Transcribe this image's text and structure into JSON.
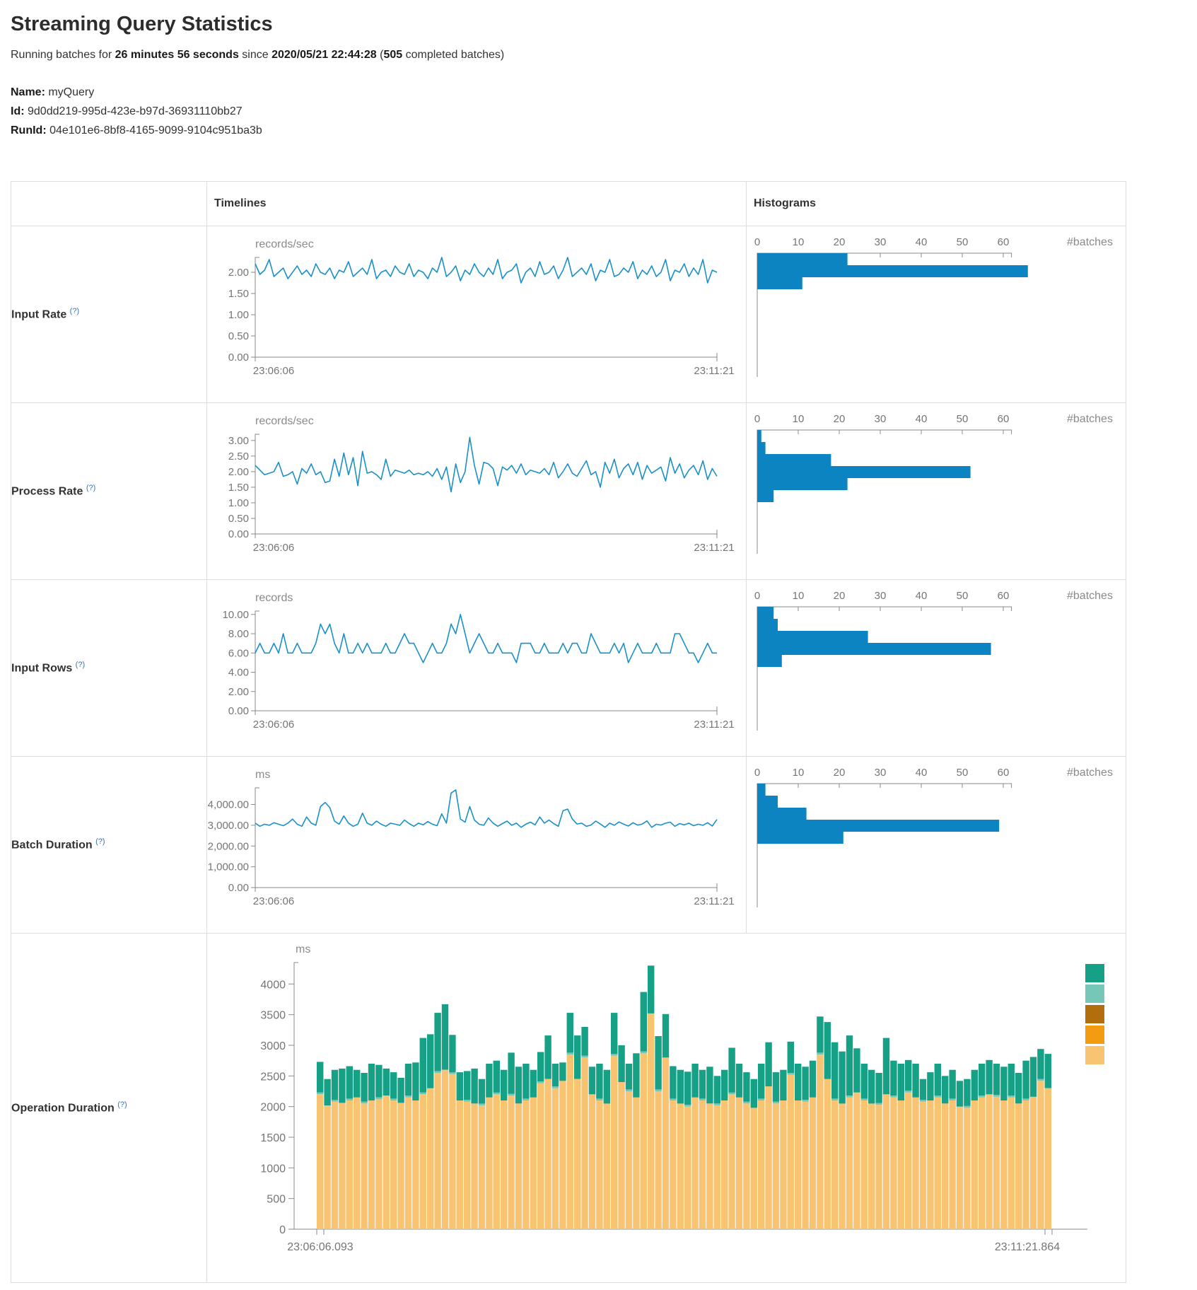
{
  "page": {
    "title": "Streaming Query Statistics",
    "running": {
      "p1": "Running batches for ",
      "p2": "26 minutes 56 seconds",
      "p3": " since ",
      "p4": "2020/05/21 22:44:28",
      "p5": " (",
      "p6": "505",
      "p7": " completed batches)"
    },
    "meta": {
      "name_label": "Name:",
      "name": " myQuery",
      "id_label": "Id:",
      "id": " 9d0dd219-995d-423e-b97d-36931110bb27",
      "runid_label": "RunId:",
      "runid": " 04e101e6-8bf8-4165-9099-9104c951ba3b"
    }
  },
  "table": {
    "timelines": "Timelines",
    "histograms": "Histograms"
  },
  "rows": [
    {
      "label": "Input Rate",
      "help": "(?)"
    },
    {
      "label": "Process Rate",
      "help": "(?)"
    },
    {
      "label": "Input Rows",
      "help": "(?)"
    },
    {
      "label": "Batch Duration",
      "help": "(?)"
    },
    {
      "label": "Operation Duration",
      "help": "(?)"
    }
  ],
  "colors": {
    "timeline_line": "#1a90c8",
    "histogram_bar": "#0d84c2",
    "axis": "#8a8a8a",
    "tick_text": "#757575",
    "table_border": "#dddddd",
    "help_link": "#3b73b9"
  },
  "chart_data": [
    {
      "id": "input-rate-timeline",
      "type": "line",
      "title": "Input Rate",
      "ylabel": "records/sec",
      "ylim": [
        0,
        2.35
      ],
      "yticks": [
        {
          "v": 0,
          "label": "0.00"
        },
        {
          "v": 0.5,
          "label": "0.50"
        },
        {
          "v": 1,
          "label": "1.00"
        },
        {
          "v": 1.5,
          "label": "1.50"
        },
        {
          "v": 2,
          "label": "2.00"
        }
      ],
      "x_start": "23:06:06",
      "x_end": "23:11:21",
      "values": [
        2.2,
        1.95,
        2.05,
        2.3,
        1.9,
        2.0,
        2.1,
        1.85,
        2.0,
        2.15,
        1.95,
        2.05,
        1.9,
        2.2,
        2.0,
        1.95,
        2.1,
        1.85,
        2.05,
        2.0,
        2.25,
        1.9,
        2.0,
        2.1,
        1.95,
        2.3,
        1.85,
        2.0,
        2.05,
        1.9,
        2.15,
        2.0,
        1.95,
        2.2,
        1.9,
        2.05,
        2.0,
        1.85,
        2.1,
        2.0,
        2.35,
        1.9,
        2.0,
        2.15,
        1.8,
        2.05,
        1.95,
        2.2,
        2.0,
        1.9,
        2.1,
        1.95,
        2.3,
        1.85,
        2.0,
        2.05,
        2.2,
        1.75,
        2.0,
        2.1,
        1.9,
        2.25,
        1.95,
        2.0,
        2.15,
        1.85,
        2.05,
        2.35,
        1.9,
        2.0,
        2.1,
        1.95,
        2.2,
        1.8,
        2.05,
        2.0,
        2.3,
        1.9,
        1.95,
        2.1,
        2.0,
        2.25,
        1.85,
        2.05,
        1.95,
        2.15,
        1.9,
        2.0,
        2.3,
        1.8,
        2.05,
        2.0,
        2.2,
        1.9,
        2.1,
        1.95,
        2.3,
        1.75,
        2.05,
        2.0
      ]
    },
    {
      "id": "input-rate-histogram",
      "type": "hbar",
      "title": "Input Rate histogram",
      "xlabel": "#batches",
      "xlim": [
        0,
        62
      ],
      "xticks": [
        0,
        10,
        20,
        30,
        40,
        50,
        60
      ],
      "values": [
        22,
        66,
        11
      ]
    },
    {
      "id": "process-rate-timeline",
      "type": "line",
      "title": "Process Rate",
      "ylabel": "records/sec",
      "ylim": [
        0,
        3.2
      ],
      "yticks": [
        {
          "v": 0,
          "label": "0.00"
        },
        {
          "v": 0.5,
          "label": "0.50"
        },
        {
          "v": 1,
          "label": "1.00"
        },
        {
          "v": 1.5,
          "label": "1.50"
        },
        {
          "v": 2,
          "label": "2.00"
        },
        {
          "v": 2.5,
          "label": "2.50"
        },
        {
          "v": 3,
          "label": "3.00"
        }
      ],
      "x_start": "23:06:06",
      "x_end": "23:11:21",
      "values": [
        2.2,
        2.05,
        1.9,
        1.95,
        2.0,
        2.3,
        1.85,
        1.9,
        2.0,
        1.6,
        2.1,
        1.95,
        2.25,
        1.9,
        2.0,
        1.65,
        1.7,
        2.4,
        1.85,
        2.6,
        1.9,
        2.45,
        1.55,
        2.65,
        1.95,
        2.0,
        1.9,
        1.75,
        2.4,
        1.85,
        2.05,
        2.0,
        1.95,
        2.05,
        1.9,
        1.95,
        1.9,
        2.0,
        1.85,
        2.1,
        1.75,
        2.15,
        1.35,
        2.25,
        1.65,
        2.0,
        3.1,
        2.2,
        1.6,
        2.3,
        2.25,
        2.1,
        1.55,
        2.15,
        2.05,
        2.2,
        1.95,
        2.25,
        1.9,
        2.05,
        2.0,
        1.95,
        2.1,
        1.9,
        2.3,
        1.8,
        2.0,
        2.25,
        1.95,
        1.85,
        2.1,
        2.35,
        1.9,
        2.0,
        1.5,
        2.3,
        1.95,
        2.4,
        1.8,
        2.1,
        2.25,
        1.9,
        2.3,
        1.75,
        2.2,
        1.95,
        2.05,
        2.15,
        1.7,
        2.45,
        1.95,
        2.25,
        1.8,
        2.05,
        2.2,
        1.9,
        2.35,
        1.75,
        2.1,
        1.85
      ]
    },
    {
      "id": "process-rate-histogram",
      "type": "hbar",
      "title": "Process Rate histogram",
      "xlabel": "#batches",
      "xlim": [
        0,
        62
      ],
      "xticks": [
        0,
        10,
        20,
        30,
        40,
        50,
        60
      ],
      "values": [
        1,
        2,
        18,
        52,
        22,
        4
      ]
    },
    {
      "id": "input-rows-timeline",
      "type": "line",
      "title": "Input Rows",
      "ylabel": "records",
      "ylim": [
        0,
        10.35
      ],
      "yticks": [
        {
          "v": 0,
          "label": "0.00"
        },
        {
          "v": 2,
          "label": "2.00"
        },
        {
          "v": 4,
          "label": "4.00"
        },
        {
          "v": 6,
          "label": "6.00"
        },
        {
          "v": 8,
          "label": "8.00"
        },
        {
          "v": 10,
          "label": "10.00"
        }
      ],
      "x_start": "23:06:06",
      "x_end": "23:11:21",
      "values": [
        6,
        7,
        6,
        6,
        7,
        6,
        8,
        6,
        6,
        7,
        6,
        6,
        6,
        7,
        9,
        8,
        9,
        7,
        6,
        8,
        6,
        6,
        7,
        6,
        7,
        6,
        6,
        6,
        7,
        6,
        6,
        7,
        8,
        7,
        7,
        6,
        5,
        6,
        7,
        6,
        6,
        7,
        9,
        8,
        10,
        8,
        6,
        7,
        8,
        7,
        6,
        6,
        7,
        6,
        6,
        6,
        5,
        7,
        7,
        7,
        6,
        6,
        7,
        6,
        6,
        6,
        7,
        6,
        7,
        7,
        6,
        6,
        8,
        7,
        6,
        6,
        6,
        7,
        6,
        7,
        5,
        6,
        7,
        6,
        6,
        6,
        7,
        6,
        6,
        6,
        8,
        8,
        7,
        6,
        6,
        5,
        6,
        7,
        6,
        6
      ]
    },
    {
      "id": "input-rows-histogram",
      "type": "hbar",
      "title": "Input Rows histogram",
      "xlabel": "#batches",
      "xlim": [
        0,
        62
      ],
      "xticks": [
        0,
        10,
        20,
        30,
        40,
        50,
        60
      ],
      "values": [
        4,
        5,
        27,
        57,
        6
      ]
    },
    {
      "id": "batch-duration-timeline",
      "type": "line",
      "title": "Batch Duration",
      "ylabel": "ms",
      "ylim": [
        0,
        4800
      ],
      "yticks": [
        {
          "v": 0,
          "label": "0.00"
        },
        {
          "v": 1000,
          "label": "1,000.00"
        },
        {
          "v": 2000,
          "label": "2,000.00"
        },
        {
          "v": 3000,
          "label": "3,000.00"
        },
        {
          "v": 4000,
          "label": "4,000.00"
        }
      ],
      "x_start": "23:06:06",
      "x_end": "23:11:21",
      "values": [
        3100,
        2950,
        3050,
        3000,
        3120,
        3050,
        2980,
        3100,
        3300,
        3050,
        2950,
        3400,
        3100,
        3000,
        3900,
        4100,
        3850,
        3200,
        3050,
        3450,
        3100,
        2950,
        3050,
        3580,
        3100,
        3000,
        3200,
        3050,
        2950,
        3100,
        3050,
        3000,
        3250,
        3080,
        2950,
        3100,
        3020,
        3180,
        3050,
        2980,
        3550,
        3100,
        4550,
        4700,
        3300,
        3150,
        3900,
        3250,
        3050,
        3000,
        3350,
        3100,
        2950,
        3080,
        3200,
        3000,
        3100,
        2900,
        3050,
        3150,
        3020,
        3400,
        3100,
        3250,
        3080,
        2950,
        3700,
        3780,
        3300,
        3060,
        3100,
        2950,
        3010,
        3200,
        3060,
        2900,
        3100,
        3000,
        3160,
        3050,
        2960,
        3120,
        3010,
        3060,
        3210,
        2900,
        3050,
        3010,
        3100,
        3150,
        2950,
        3080,
        3020,
        3100,
        2980,
        3050,
        3000,
        3120,
        2960,
        3280
      ]
    },
    {
      "id": "batch-duration-histogram",
      "type": "hbar",
      "title": "Batch Duration histogram",
      "xlabel": "#batches",
      "xlim": [
        0,
        62
      ],
      "xticks": [
        0,
        10,
        20,
        30,
        40,
        50,
        60
      ],
      "values": [
        2,
        5,
        12,
        59,
        21
      ]
    },
    {
      "id": "operation-duration",
      "type": "stacked-bar",
      "title": "Operation Duration",
      "ylabel": "ms",
      "ylim": [
        0,
        4350
      ],
      "yticks": [
        {
          "v": 0,
          "label": "0"
        },
        {
          "v": 500,
          "label": "500"
        },
        {
          "v": 1000,
          "label": "1000"
        },
        {
          "v": 1500,
          "label": "1500"
        },
        {
          "v": 2000,
          "label": "2000"
        },
        {
          "v": 2500,
          "label": "2500"
        },
        {
          "v": 3000,
          "label": "3000"
        },
        {
          "v": 3500,
          "label": "3500"
        },
        {
          "v": 4000,
          "label": "4000"
        }
      ],
      "x_start": "23:06:06.093",
      "x_end": "23:11:21.864",
      "legend_position": "right",
      "series": [
        {
          "color": "#16a085",
          "values": [
            500,
            430,
            490,
            560,
            530,
            450,
            470,
            600,
            530,
            440,
            430,
            410,
            520,
            620,
            890,
            880,
            950,
            1070,
            610,
            460,
            470,
            570,
            400,
            550,
            520,
            500,
            670,
            600,
            570,
            450,
            480,
            710,
            370,
            300,
            650,
            710,
            470,
            450,
            570,
            550,
            670,
            600,
            420,
            720,
            970,
            780,
            870,
            710,
            530,
            550,
            540,
            550,
            470,
            600,
            450,
            500,
            730,
            550,
            480,
            470,
            570,
            720,
            480,
            500,
            510,
            600,
            540,
            600,
            590,
            930,
            920,
            850,
            980,
            720,
            570,
            550,
            490,
            920,
            570,
            600,
            500,
            550,
            340,
            460,
            520,
            450,
            470,
            420,
            440,
            500,
            520,
            560,
            510,
            550,
            520,
            500,
            620,
            650,
            490,
            560
          ]
        },
        {
          "color": "#76c7b7",
          "values": [
            30,
            0,
            30,
            0,
            30,
            0,
            30,
            0,
            30,
            0,
            30,
            0,
            30,
            0,
            30,
            0,
            30,
            0,
            30,
            0,
            30,
            0,
            30,
            0,
            30,
            0,
            30,
            0,
            30,
            0,
            30,
            0,
            30,
            0,
            30,
            0,
            30,
            0,
            30,
            0,
            30,
            0,
            30,
            0,
            30,
            0,
            30,
            0,
            30,
            0,
            30,
            0,
            30,
            0,
            30,
            0,
            30,
            0,
            30,
            0,
            30,
            0,
            30,
            0,
            30,
            0,
            30,
            0,
            30,
            0,
            30,
            0,
            30,
            0,
            30,
            0,
            30,
            0,
            30,
            0,
            30,
            0,
            30,
            0,
            30,
            0,
            30,
            0,
            30,
            0,
            30,
            0,
            30,
            0,
            30,
            0,
            30,
            0,
            30,
            0
          ]
        },
        {
          "color": "#b26e0d",
          "values": null
        },
        {
          "color": "#f39c12",
          "values": null
        },
        {
          "color": "#f8c471",
          "values": [
            2200,
            2020,
            2080,
            2060,
            2100,
            2150,
            2050,
            2100,
            2120,
            2180,
            2100,
            2060,
            2150,
            2100,
            2200,
            2300,
            2550,
            2600,
            2530,
            2100,
            2080,
            2050,
            2020,
            2150,
            2200,
            2100,
            2180,
            2050,
            2100,
            2150,
            2380,
            2450,
            2300,
            2420,
            2850,
            2450,
            2800,
            2200,
            2100,
            2050,
            2830,
            2400,
            2250,
            2150,
            2870,
            3520,
            2250,
            2800,
            2100,
            2050,
            2000,
            2150,
            2100,
            2050,
            2020,
            2100,
            2200,
            2150,
            2050,
            1980,
            2100,
            2330,
            2050,
            2100,
            2520,
            2100,
            2080,
            2150,
            2850,
            2450,
            2100,
            2050,
            2150,
            2230,
            2100,
            2050,
            2030,
            2200,
            2150,
            2100,
            2230,
            2150,
            2080,
            2100,
            2150,
            2050,
            2100,
            2000,
            1980,
            2100,
            2150,
            2200,
            2160,
            2100,
            2150,
            2050,
            2100,
            2160,
            2420,
            2300
          ]
        }
      ]
    }
  ]
}
